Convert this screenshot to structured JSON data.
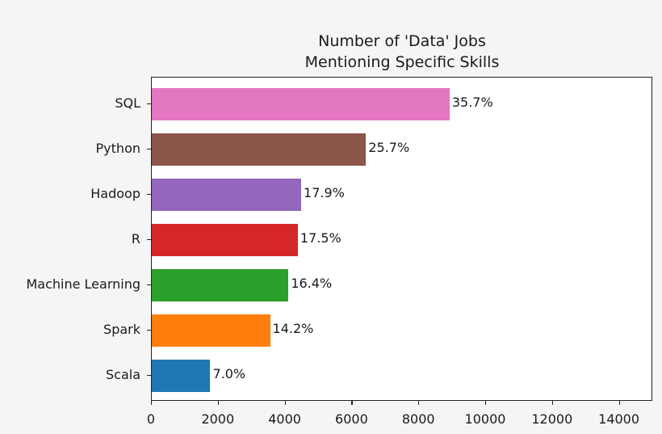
{
  "chart_data": {
    "type": "bar",
    "orientation": "horizontal",
    "title": "Number of 'Data' Jobs\nMentioning Specific Skills",
    "title_lines": [
      "Number of 'Data' Jobs",
      "Mentioning Specific Skills"
    ],
    "xlabel": "",
    "ylabel": "",
    "xlim": [
      0,
      15000
    ],
    "grid": false,
    "legend": null,
    "categories": [
      "SQL",
      "Python",
      "Hadoop",
      "R",
      "Machine Learning",
      "Spark",
      "Scala"
    ],
    "values": [
      8910,
      6410,
      4470,
      4370,
      4090,
      3540,
      1750
    ],
    "labels": [
      "35.7%",
      "25.7%",
      "17.9%",
      "17.5%",
      "16.4%",
      "14.2%",
      "7.0%"
    ],
    "colors": [
      "#e377c2",
      "#8c564b",
      "#9467bd",
      "#d62728",
      "#2ca02c",
      "#ff7f0e",
      "#1f77b4"
    ],
    "xticks": [
      "0",
      "2000",
      "4000",
      "6000",
      "8000",
      "10000",
      "12000",
      "14000"
    ],
    "xtick_values": [
      0,
      2000,
      4000,
      6000,
      8000,
      10000,
      12000,
      14000
    ]
  }
}
